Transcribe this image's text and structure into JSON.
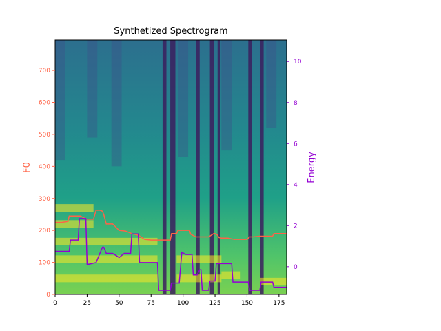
{
  "chart_data": {
    "type": "heatmap",
    "title": "Synthetized Spectrogram",
    "xlabel": "",
    "ylabel_left": "F0",
    "ylabel_right": "Energy",
    "xlim": [
      0,
      181
    ],
    "ylim_left": [
      0,
      795
    ],
    "ylim_right": [
      -1.35,
      11.05
    ],
    "x_ticks": [
      0,
      25,
      50,
      75,
      100,
      125,
      150,
      175
    ],
    "y_ticks_left": [
      0,
      100,
      200,
      300,
      400,
      500,
      600,
      700
    ],
    "y_ticks_right": [
      0,
      2,
      4,
      6,
      8,
      10
    ],
    "colors": {
      "f0_line": "#ff6347",
      "f0_axis": "#ff6347",
      "energy_line": "#9400d3",
      "energy_axis": "#9400d3",
      "colormap": "viridis"
    },
    "series": [
      {
        "name": "F0",
        "axis": "left",
        "x": [
          0,
          5,
          10,
          11,
          15,
          20,
          22,
          25,
          30,
          32,
          35,
          37,
          38,
          40,
          45,
          50,
          55,
          60,
          65,
          70,
          75,
          80,
          85,
          90,
          91,
          95,
          96,
          100,
          105,
          106,
          110,
          115,
          120,
          124,
          125,
          127,
          128,
          130,
          135,
          140,
          145,
          150,
          152,
          155,
          160,
          165,
          170,
          171,
          175,
          181
        ],
        "y": [
          225,
          225,
          228,
          245,
          245,
          245,
          240,
          235,
          235,
          263,
          263,
          260,
          250,
          220,
          220,
          200,
          198,
          190,
          185,
          172,
          170,
          170,
          170,
          170,
          190,
          190,
          200,
          200,
          200,
          188,
          180,
          180,
          180,
          190,
          190,
          185,
          178,
          176,
          176,
          172,
          172,
          172,
          180,
          180,
          182,
          182,
          182,
          190,
          190,
          190
        ]
      },
      {
        "name": "Energy",
        "axis": "right",
        "x": [
          0,
          11,
          12,
          18,
          19,
          24,
          25,
          32,
          37,
          38,
          40,
          45,
          50,
          54,
          59,
          60,
          65,
          66,
          70,
          75,
          80,
          81,
          85,
          90,
          91,
          95,
          97,
          99,
          102,
          107,
          108,
          111,
          113,
          114,
          115,
          120,
          121,
          124,
          125,
          126,
          130,
          138,
          139,
          145,
          151,
          152,
          160,
          161,
          170,
          171,
          181
        ],
        "y": [
          0.75,
          0.75,
          1.3,
          1.3,
          2.35,
          2.35,
          0.1,
          0.2,
          0.95,
          0.95,
          0.65,
          0.65,
          0.45,
          0.65,
          0.65,
          1.6,
          1.6,
          0.2,
          0.2,
          0.2,
          0.2,
          -1.15,
          -1.15,
          -1.15,
          -0.8,
          -0.8,
          -0.8,
          0.7,
          0.6,
          0.6,
          -0.4,
          -0.4,
          -0.15,
          -0.15,
          -1.15,
          -1.15,
          -0.7,
          -0.7,
          -0.7,
          0.15,
          0.15,
          0.15,
          -0.75,
          -0.75,
          -0.75,
          -1.15,
          -1.15,
          -0.75,
          -0.75,
          -1.0,
          -1.0
        ]
      }
    ]
  }
}
